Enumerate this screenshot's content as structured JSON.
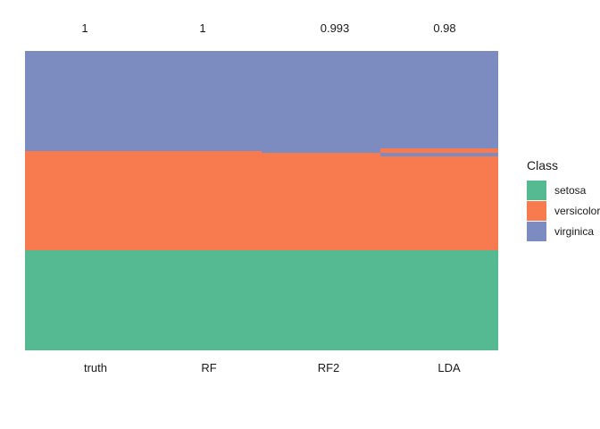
{
  "chart_data": {
    "type": "bar",
    "subtype": "stacked-fill-columns",
    "title": "",
    "xlabel": "",
    "ylabel": "",
    "grid": false,
    "legend_position": "right",
    "categories": [
      "truth",
      "RF",
      "RF2",
      "LDA"
    ],
    "accuracy_values": [
      1,
      1,
      0.993,
      0.98
    ],
    "total_per_column": 150,
    "class_colors": {
      "setosa": "#55B991",
      "versicolor": "#F87B50",
      "virginica": "#7D8CC0"
    },
    "columns": [
      {
        "model": "truth",
        "accuracy": "1",
        "segments": [
          {
            "class": "virginica",
            "count": 50
          },
          {
            "class": "versicolor",
            "count": 50
          },
          {
            "class": "setosa",
            "count": 50
          }
        ]
      },
      {
        "model": "RF",
        "accuracy": "1",
        "segments": [
          {
            "class": "virginica",
            "count": 50
          },
          {
            "class": "versicolor",
            "count": 50
          },
          {
            "class": "setosa",
            "count": 50
          }
        ]
      },
      {
        "model": "RF2",
        "accuracy": "0.993",
        "segments": [
          {
            "class": "virginica",
            "count": 51
          },
          {
            "class": "versicolor",
            "count": 49
          },
          {
            "class": "setosa",
            "count": 50
          }
        ]
      },
      {
        "model": "LDA",
        "accuracy": "0.98",
        "segments": [
          {
            "class": "virginica",
            "count": 49
          },
          {
            "class": "versicolor",
            "count": 2
          },
          {
            "class": "virginica",
            "count": 2
          },
          {
            "class": "versicolor",
            "count": 47
          },
          {
            "class": "setosa",
            "count": 50
          }
        ]
      }
    ],
    "legend": {
      "title": "Class",
      "entries": [
        "setosa",
        "versicolor",
        "virginica"
      ]
    }
  }
}
